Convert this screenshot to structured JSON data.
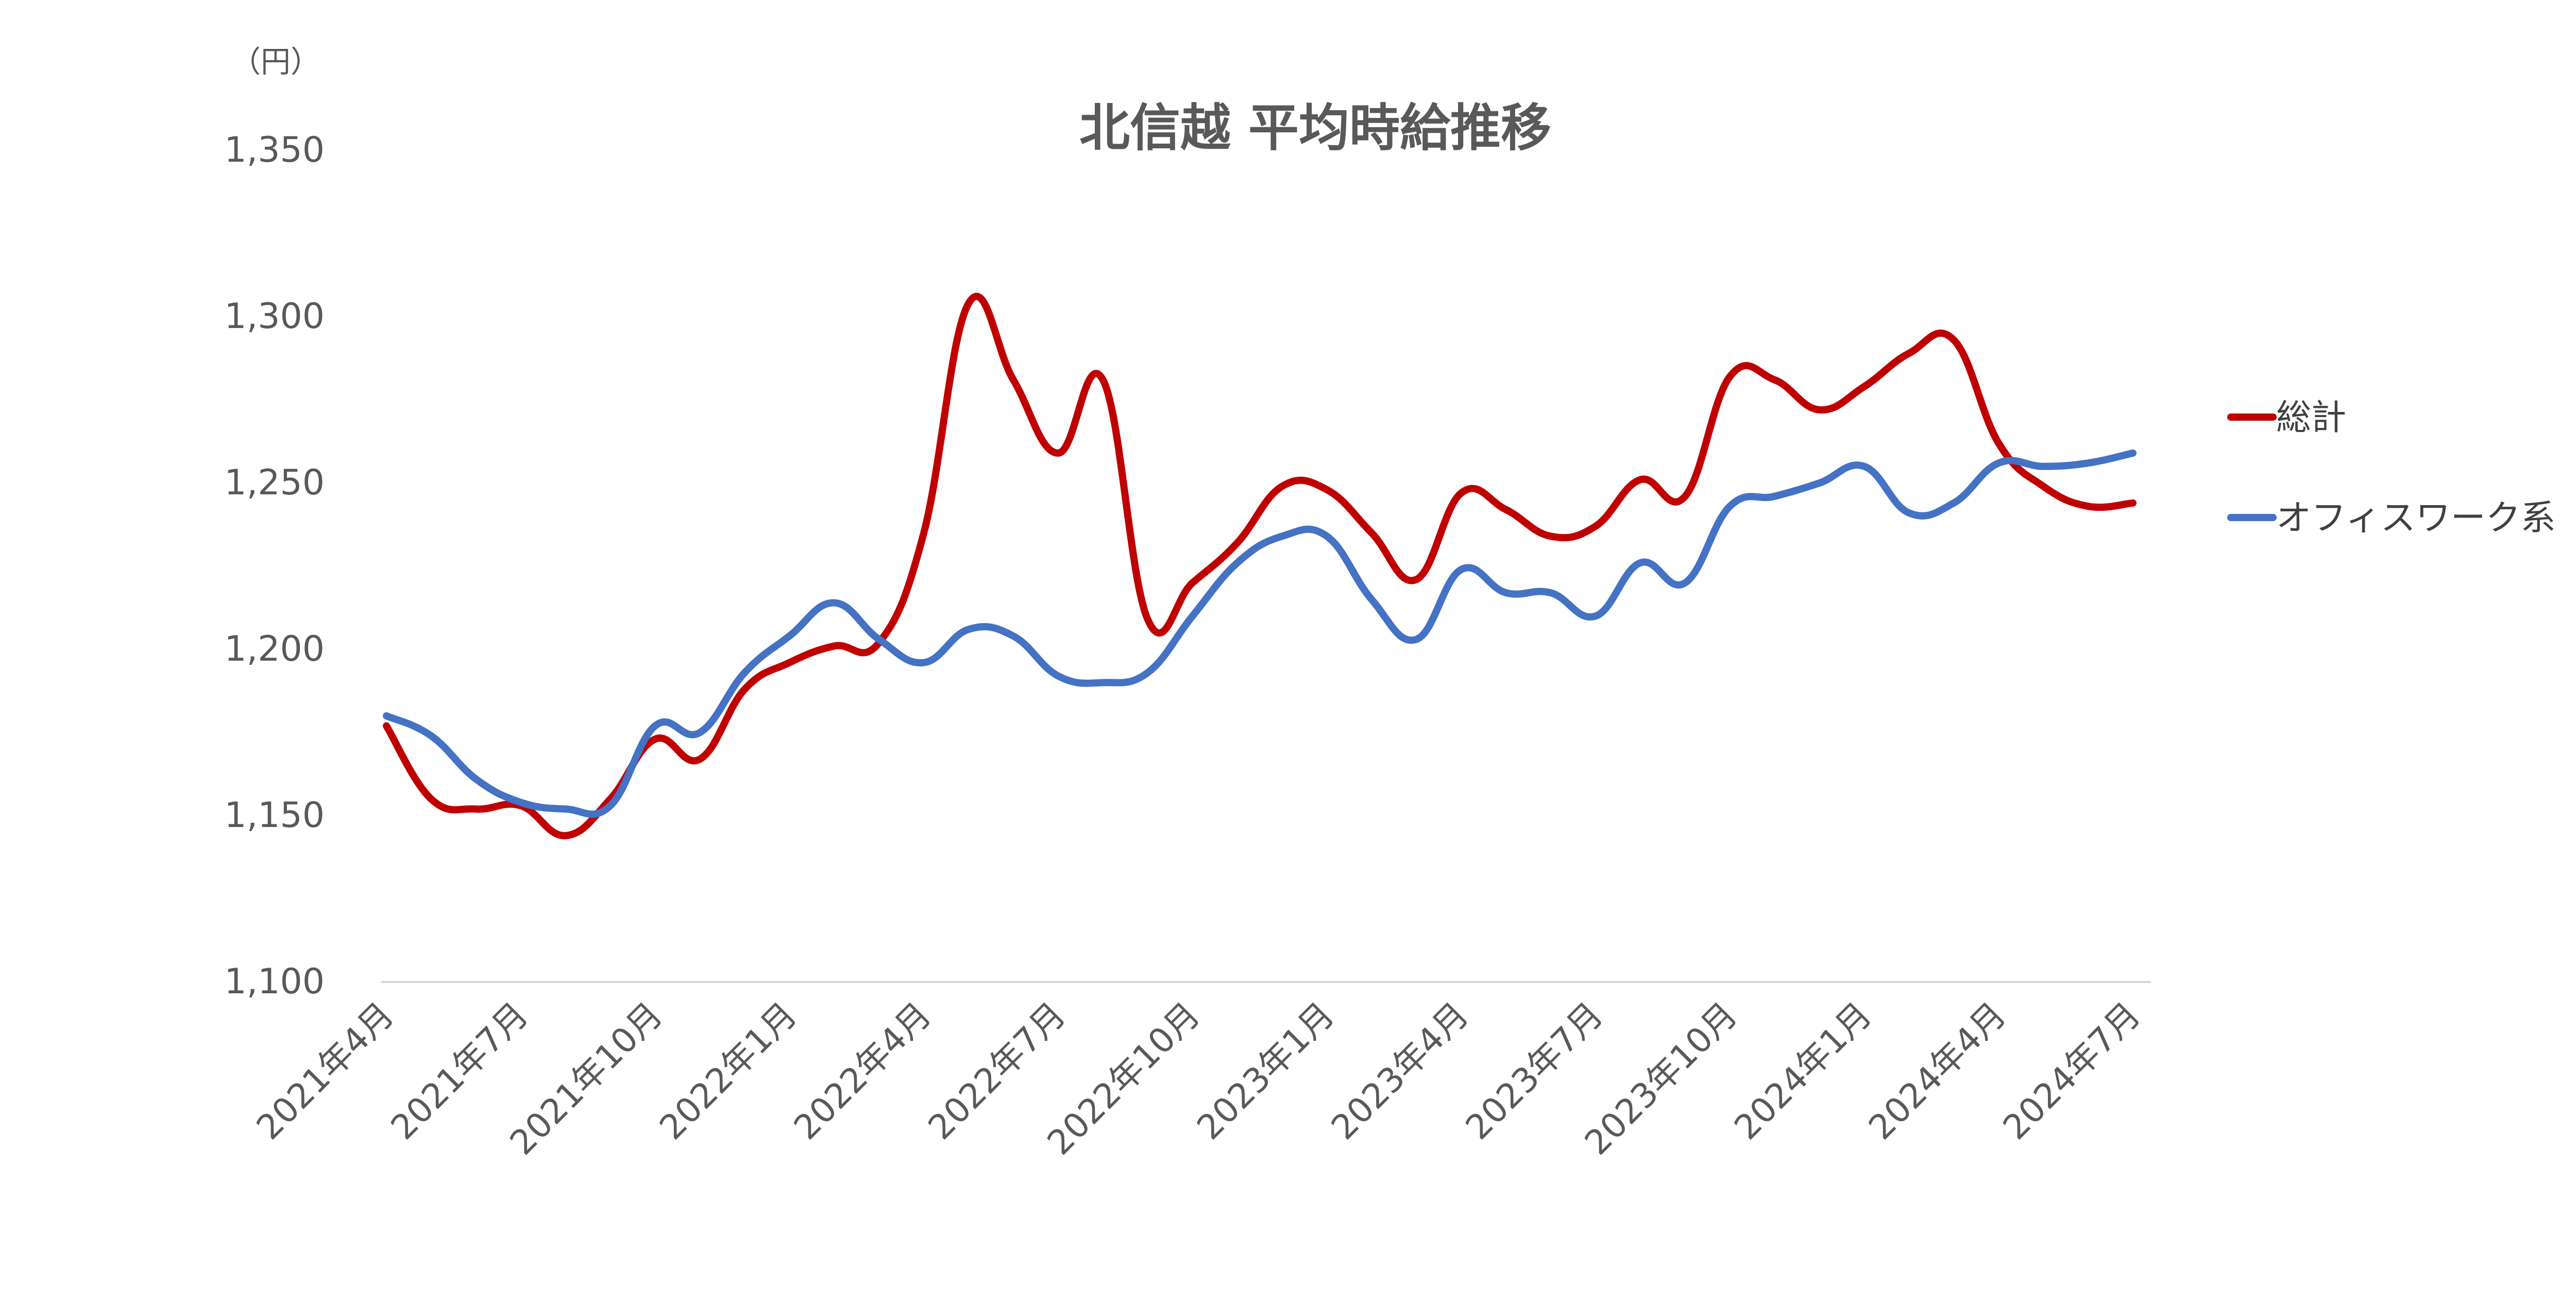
{
  "chart_data": {
    "type": "line",
    "title": "北信越 平均時給推移",
    "unit_label": "（円）",
    "xlabel": "",
    "ylabel": "",
    "ylim": [
      1100,
      1350
    ],
    "yticks": [
      "1,100",
      "1,150",
      "1,200",
      "1,250",
      "1,300",
      "1,350"
    ],
    "y_tick_values": [
      1100,
      1150,
      1200,
      1250,
      1300,
      1350
    ],
    "x_tick_labels": [
      "2021年4月",
      "2021年7月",
      "2021年10月",
      "2022年1月",
      "2022年4月",
      "2022年7月",
      "2022年10月",
      "2023年1月",
      "2023年4月",
      "2023年7月",
      "2023年10月",
      "2024年1月",
      "2024年4月",
      "2024年7月"
    ],
    "categories": [
      "2021年4月",
      "2021年5月",
      "2021年6月",
      "2021年7月",
      "2021年8月",
      "2021年9月",
      "2021年10月",
      "2021年11月",
      "2021年12月",
      "2022年1月",
      "2022年2月",
      "2022年3月",
      "2022年4月",
      "2022年5月",
      "2022年6月",
      "2022年7月",
      "2022年8月",
      "2022年9月",
      "2022年10月",
      "2022年11月",
      "2022年12月",
      "2023年1月",
      "2023年2月",
      "2023年3月",
      "2023年4月",
      "2023年5月",
      "2023年6月",
      "2023年7月",
      "2023年8月",
      "2023年9月",
      "2023年10月",
      "2023年11月",
      "2023年12月",
      "2024年1月",
      "2024年2月",
      "2024年3月",
      "2024年4月",
      "2024年5月",
      "2024年6月",
      "2024年7月"
    ],
    "series": [
      {
        "name": "総計",
        "color": "#C00000",
        "values": [
          1177,
          1155,
          1152,
          1153,
          1144,
          1155,
          1173,
          1167,
          1188,
          1196,
          1201,
          1202,
          1235,
          1304,
          1281,
          1259,
          1281,
          1209,
          1220,
          1232,
          1249,
          1248,
          1235,
          1221,
          1247,
          1242,
          1234,
          1237,
          1251,
          1246,
          1282,
          1281,
          1272,
          1279,
          1289,
          1293,
          1262,
          1249,
          1243,
          1244
        ]
      },
      {
        "name": "オフィスワーク系",
        "color": "#4472C4",
        "values": [
          1180,
          1174,
          1161,
          1154,
          1152,
          1153,
          1177,
          1175,
          1193,
          1204,
          1214,
          1203,
          1196,
          1206,
          1204,
          1192,
          1190,
          1193,
          1210,
          1226,
          1234,
          1234,
          1215,
          1203,
          1224,
          1217,
          1217,
          1210,
          1226,
          1220,
          1243,
          1246,
          1250,
          1255,
          1241,
          1244,
          1256,
          1255,
          1256,
          1259
        ]
      }
    ],
    "grid": false,
    "legend_position": "right"
  }
}
